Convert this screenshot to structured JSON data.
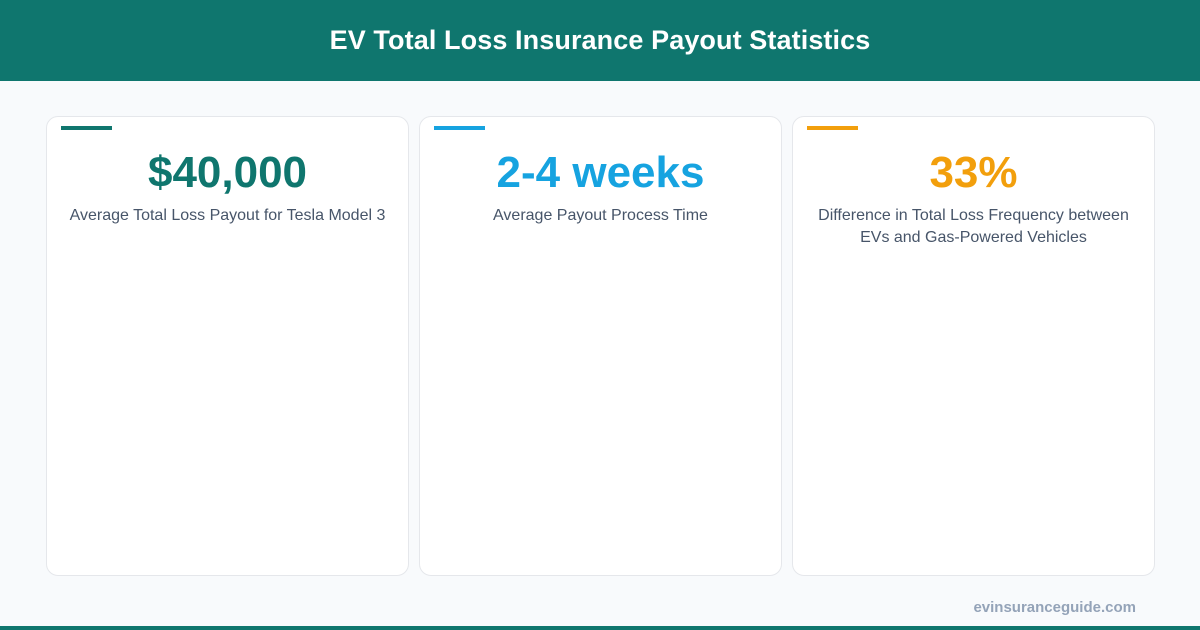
{
  "header": {
    "title": "EV Total Loss Insurance Payout Statistics",
    "background_color": "#0f766e"
  },
  "stats": [
    {
      "value": "$40,000",
      "label": "Average Total Loss Payout for Tesla Model 3",
      "accent_color": "#0f766e"
    },
    {
      "value": "2-4 weeks",
      "label": "Average Payout Process Time",
      "accent_color": "#16a3e0"
    },
    {
      "value": "33%",
      "label": "Difference in Total Loss Frequency between EVs and Gas-Powered Vehicles",
      "accent_color": "#f29f0c"
    }
  ],
  "footer": {
    "site": "evinsuranceguide.com"
  }
}
